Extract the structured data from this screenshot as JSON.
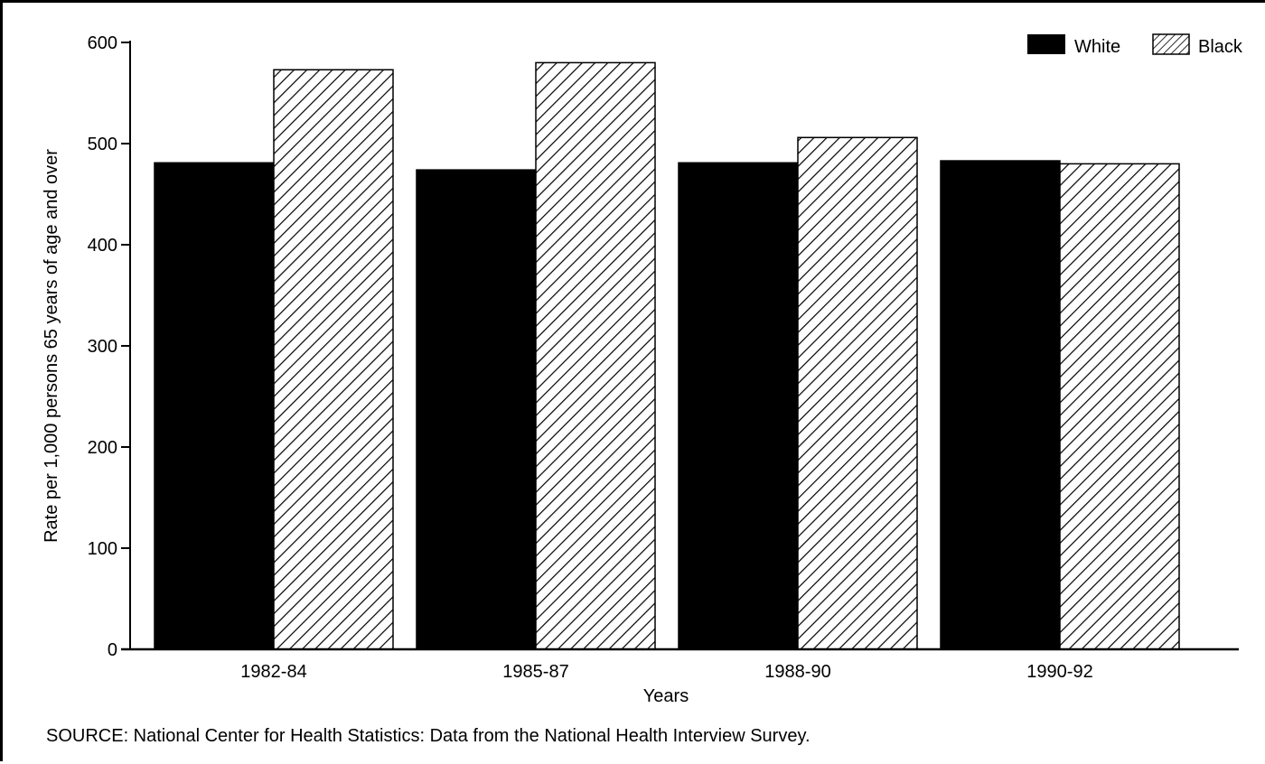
{
  "chart_data": {
    "type": "bar",
    "ylabel": "Rate per 1,000 persons 65 years of age and over",
    "xlabel": "Years",
    "categories": [
      "1982-84",
      "1985-87",
      "1988-90",
      "1990-92"
    ],
    "series": [
      {
        "name": "White",
        "values": [
          481,
          474,
          481,
          483
        ],
        "fill": "#000000",
        "pattern": "solid"
      },
      {
        "name": "Black",
        "values": [
          573,
          580,
          506,
          480
        ],
        "fill": "#ffffff",
        "pattern": "diagonal-hatch"
      }
    ],
    "ylim": [
      0,
      600
    ],
    "yticks": [
      0,
      100,
      200,
      300,
      400,
      500,
      600
    ],
    "grid": false,
    "legend_position": "top-right",
    "source": "SOURCE:  National Center for Health Statistics: Data from the National Health Interview Survey."
  }
}
